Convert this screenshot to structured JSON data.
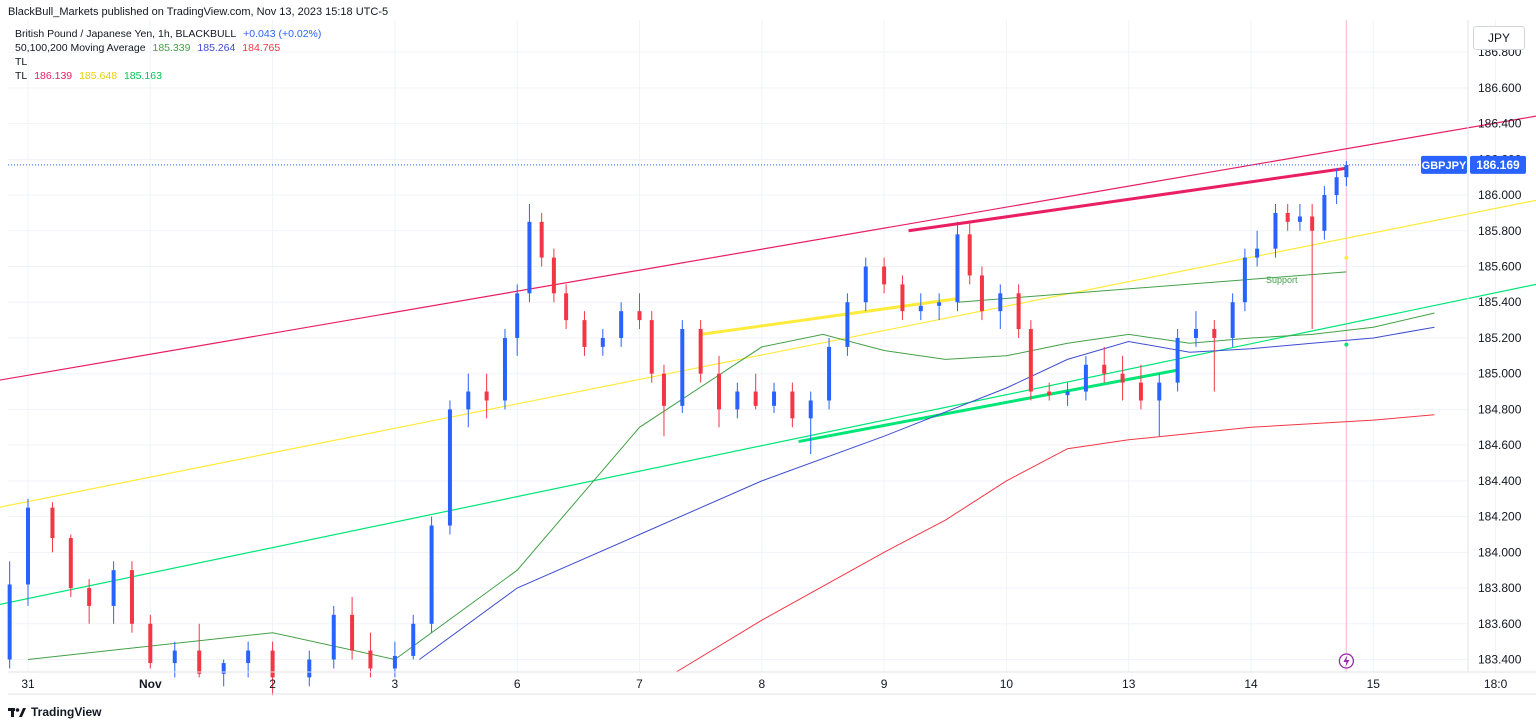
{
  "header": {
    "publisher_line": "BlackBull_Markets published on TradingView.com, Nov 13, 2023 15:18 UTC-5"
  },
  "legend": {
    "symbol_line": "British Pound / Japanese Yen, 1h, BLACKBULL",
    "symbol_change": "+0.043 (+0.02%)",
    "ma_label": "50,100,200 Moving Average",
    "ma_values": [
      "185.339",
      "185.264",
      "184.765"
    ],
    "tl1_label": "TL",
    "tl2_label": "TL",
    "tl2_values": [
      "186.139",
      "185.648",
      "185.163"
    ]
  },
  "currency_button": "JPY",
  "price_badge": {
    "symbol": "GBPJPY",
    "value": "186.169"
  },
  "support_label": "Support",
  "footer": {
    "brand": "TradingView"
  },
  "colors": {
    "up": "#2962ff",
    "down": "#f23645",
    "ma50": "#43a047",
    "ma100": "#3d4dd0",
    "ma200": "#f23645",
    "pink_channel": "#e91e63",
    "yellow_channel": "#ffeb3b",
    "green_channel": "#00e676"
  },
  "chart_data": {
    "type": "candlestick",
    "title": "British Pound / Japanese Yen, 1h, BLACKBULL",
    "y_ticks": [
      "186.800",
      "186.600",
      "186.400",
      "186.200",
      "186.000",
      "185.800",
      "185.600",
      "185.400",
      "185.200",
      "185.000",
      "184.800",
      "184.600",
      "184.400",
      "184.200",
      "184.000",
      "183.800",
      "183.600",
      "183.400"
    ],
    "x_ticks": [
      "31",
      "Nov",
      "2",
      "3",
      "6",
      "7",
      "8",
      "9",
      "10",
      "13",
      "14",
      "15",
      "18:0"
    ],
    "ylim": [
      183.33,
      186.98
    ],
    "last_price": 186.169,
    "moving_averages": [
      {
        "name": "MA50",
        "last": 185.339,
        "points": [
          [
            0,
            183.4
          ],
          [
            2,
            183.55
          ],
          [
            3,
            183.4
          ],
          [
            4,
            183.9
          ],
          [
            5,
            184.7
          ],
          [
            6,
            185.15
          ],
          [
            6.5,
            185.22
          ],
          [
            7,
            185.13
          ],
          [
            7.5,
            185.08
          ],
          [
            8,
            185.1
          ],
          [
            8.5,
            185.17
          ],
          [
            9,
            185.22
          ],
          [
            9.5,
            185.17
          ],
          [
            10,
            185.2
          ],
          [
            10.5,
            185.22
          ],
          [
            11,
            185.26
          ],
          [
            11.5,
            185.34
          ]
        ]
      },
      {
        "name": "MA100",
        "last": 185.264,
        "points": [
          [
            3.2,
            183.4
          ],
          [
            4,
            183.8
          ],
          [
            5,
            184.1
          ],
          [
            6,
            184.4
          ],
          [
            7,
            184.65
          ],
          [
            8,
            184.92
          ],
          [
            8.5,
            185.08
          ],
          [
            9,
            185.18
          ],
          [
            9.5,
            185.12
          ],
          [
            10,
            185.14
          ],
          [
            10.5,
            185.17
          ],
          [
            11,
            185.2
          ],
          [
            11.5,
            185.26
          ]
        ]
      },
      {
        "name": "MA200",
        "last": 184.765,
        "points": [
          [
            5.3,
            183.33
          ],
          [
            6,
            183.62
          ],
          [
            7,
            184.0
          ],
          [
            7.5,
            184.18
          ],
          [
            8,
            184.4
          ],
          [
            8.5,
            184.58
          ],
          [
            9,
            184.63
          ],
          [
            10,
            184.7
          ],
          [
            11,
            184.74
          ],
          [
            11.5,
            184.77
          ]
        ]
      }
    ],
    "trend_lines": [
      {
        "name": "TL pink",
        "last": 186.139,
        "points": [
          [
            -1.2,
            184.85
          ],
          [
            12.4,
            186.45
          ]
        ]
      },
      {
        "name": "TL yellow",
        "last": 185.648,
        "points": [
          [
            -1.2,
            184.12
          ],
          [
            12.4,
            185.98
          ]
        ]
      },
      {
        "name": "TL green",
        "last": 185.163,
        "points": [
          [
            -1.2,
            183.57
          ],
          [
            12.4,
            185.51
          ]
        ]
      }
    ],
    "candles": [
      [
        -1,
        183.25,
        183.52,
        183.2,
        183.45
      ],
      [
        -0.75,
        183.45,
        183.95,
        183.4,
        183.85
      ],
      [
        -0.5,
        183.85,
        183.9,
        183.55,
        183.62
      ],
      [
        -0.3,
        183.62,
        183.7,
        183.3,
        183.4
      ],
      [
        -0.15,
        183.4,
        183.95,
        183.35,
        183.82
      ],
      [
        0,
        183.82,
        184.3,
        183.7,
        184.25
      ],
      [
        0.2,
        184.25,
        184.28,
        184.0,
        184.08
      ],
      [
        0.35,
        184.08,
        184.1,
        183.75,
        183.8
      ],
      [
        0.5,
        183.8,
        183.85,
        183.6,
        183.7
      ],
      [
        0.7,
        183.7,
        183.95,
        183.6,
        183.9
      ],
      [
        0.85,
        183.9,
        183.95,
        183.55,
        183.6
      ],
      [
        1,
        183.6,
        183.65,
        183.35,
        183.38
      ],
      [
        1.2,
        183.38,
        183.5,
        183.3,
        183.45
      ],
      [
        1.4,
        183.45,
        183.6,
        183.3,
        183.32
      ],
      [
        1.6,
        183.32,
        183.4,
        183.25,
        183.38
      ],
      [
        1.8,
        183.38,
        183.5,
        183.3,
        183.45
      ],
      [
        2,
        183.45,
        183.5,
        183.2,
        183.3
      ],
      [
        2.3,
        183.3,
        183.45,
        183.25,
        183.4
      ],
      [
        2.5,
        183.4,
        183.7,
        183.35,
        183.65
      ],
      [
        2.65,
        183.65,
        183.75,
        183.4,
        183.45
      ],
      [
        2.8,
        183.45,
        183.55,
        183.3,
        183.35
      ],
      [
        3,
        183.35,
        183.5,
        183.3,
        183.42
      ],
      [
        3.15,
        183.42,
        183.65,
        183.4,
        183.6
      ],
      [
        3.3,
        183.6,
        184.2,
        183.55,
        184.15
      ],
      [
        3.45,
        184.15,
        184.85,
        184.1,
        184.8
      ],
      [
        3.6,
        184.8,
        185.0,
        184.7,
        184.9
      ],
      [
        3.75,
        184.9,
        185.0,
        184.75,
        184.85
      ],
      [
        3.9,
        184.85,
        185.25,
        184.8,
        185.2
      ],
      [
        4,
        185.2,
        185.5,
        185.1,
        185.45
      ],
      [
        4.1,
        185.45,
        185.95,
        185.4,
        185.85
      ],
      [
        4.2,
        185.85,
        185.9,
        185.6,
        185.65
      ],
      [
        4.3,
        185.65,
        185.7,
        185.4,
        185.45
      ],
      [
        4.4,
        185.45,
        185.5,
        185.25,
        185.3
      ],
      [
        4.55,
        185.3,
        185.35,
        185.1,
        185.15
      ],
      [
        4.7,
        185.15,
        185.25,
        185.1,
        185.2
      ],
      [
        4.85,
        185.2,
        185.4,
        185.15,
        185.35
      ],
      [
        5,
        185.35,
        185.45,
        185.25,
        185.3
      ],
      [
        5.1,
        185.3,
        185.35,
        184.95,
        185.0
      ],
      [
        5.2,
        185.0,
        185.05,
        184.65,
        184.82
      ],
      [
        5.35,
        184.82,
        185.3,
        184.78,
        185.25
      ],
      [
        5.5,
        185.25,
        185.3,
        184.95,
        185.0
      ],
      [
        5.65,
        185.0,
        185.1,
        184.7,
        184.8
      ],
      [
        5.8,
        184.8,
        184.95,
        184.75,
        184.9
      ],
      [
        5.95,
        184.9,
        185.0,
        184.8,
        184.82
      ],
      [
        6.1,
        184.82,
        184.95,
        184.78,
        184.9
      ],
      [
        6.25,
        184.9,
        184.95,
        184.7,
        184.75
      ],
      [
        6.4,
        184.75,
        184.9,
        184.55,
        184.85
      ],
      [
        6.55,
        184.85,
        185.2,
        184.8,
        185.15
      ],
      [
        6.7,
        185.15,
        185.45,
        185.1,
        185.4
      ],
      [
        6.85,
        185.4,
        185.65,
        185.35,
        185.6
      ],
      [
        7,
        185.6,
        185.65,
        185.45,
        185.5
      ],
      [
        7.15,
        185.5,
        185.55,
        185.3,
        185.35
      ],
      [
        7.3,
        185.35,
        185.45,
        185.3,
        185.38
      ],
      [
        7.45,
        185.38,
        185.45,
        185.3,
        185.4
      ],
      [
        7.6,
        185.4,
        185.85,
        185.35,
        185.78
      ],
      [
        7.7,
        185.78,
        185.85,
        185.5,
        185.55
      ],
      [
        7.8,
        185.55,
        185.6,
        185.3,
        185.35
      ],
      [
        7.95,
        185.35,
        185.5,
        185.25,
        185.45
      ],
      [
        8.1,
        185.45,
        185.5,
        185.2,
        185.25
      ],
      [
        8.2,
        185.25,
        185.3,
        184.85,
        184.9
      ],
      [
        8.35,
        184.9,
        184.95,
        184.85,
        184.88
      ],
      [
        8.5,
        184.88,
        184.95,
        184.82,
        184.9
      ],
      [
        8.65,
        184.9,
        185.1,
        184.85,
        185.05
      ],
      [
        8.8,
        185.05,
        185.15,
        184.95,
        185.0
      ],
      [
        8.95,
        185.0,
        185.1,
        184.85,
        184.95
      ],
      [
        9.1,
        184.95,
        185.05,
        184.8,
        184.85
      ],
      [
        9.25,
        184.85,
        185.0,
        184.65,
        184.95
      ],
      [
        9.4,
        184.95,
        185.25,
        184.9,
        185.2
      ],
      [
        9.55,
        185.2,
        185.35,
        185.15,
        185.25
      ],
      [
        9.7,
        185.25,
        185.3,
        184.9,
        185.2
      ],
      [
        9.85,
        185.2,
        185.45,
        185.15,
        185.4
      ],
      [
        9.95,
        185.4,
        185.7,
        185.35,
        185.65
      ],
      [
        10.05,
        185.65,
        185.8,
        185.6,
        185.7
      ],
      [
        10.2,
        185.7,
        185.95,
        185.65,
        185.9
      ],
      [
        10.3,
        185.9,
        185.95,
        185.8,
        185.85
      ],
      [
        10.4,
        185.85,
        185.95,
        185.8,
        185.88
      ],
      [
        10.5,
        185.88,
        185.95,
        185.25,
        185.8
      ],
      [
        10.6,
        185.8,
        186.05,
        185.75,
        186.0
      ],
      [
        10.7,
        186.0,
        186.15,
        185.95,
        186.1
      ],
      [
        10.78,
        186.1,
        186.19,
        186.05,
        186.169
      ]
    ]
  }
}
